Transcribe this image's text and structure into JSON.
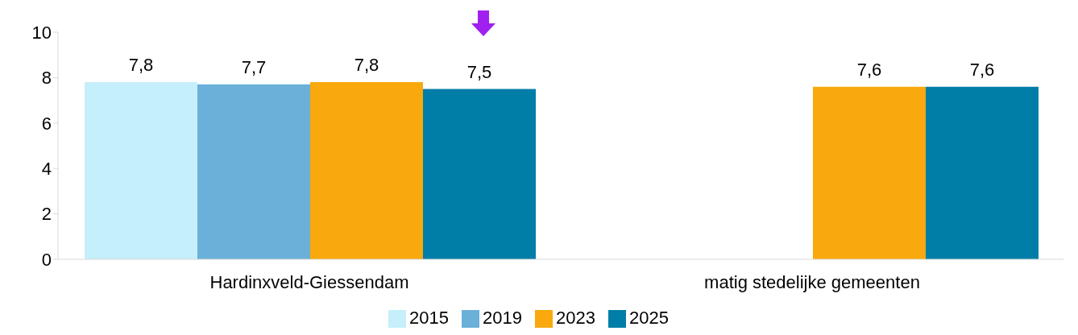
{
  "chart_data": {
    "type": "bar",
    "categories": [
      "Hardinxveld-Giessendam",
      "matig stedelijke gemeenten"
    ],
    "series": [
      {
        "name": "2015",
        "color": "#c5effb",
        "values": [
          7.8,
          null
        ],
        "value_labels": [
          "7,8",
          null
        ]
      },
      {
        "name": "2019",
        "color": "#6ab0d9",
        "values": [
          7.7,
          null
        ],
        "value_labels": [
          "7,7",
          null
        ]
      },
      {
        "name": "2023",
        "color": "#f9a80d",
        "values": [
          7.8,
          7.6
        ],
        "value_labels": [
          "7,8",
          "7,6"
        ]
      },
      {
        "name": "2025",
        "color": "#007ea7",
        "values": [
          7.5,
          7.6
        ],
        "value_labels": [
          "7,5",
          "7,6"
        ]
      }
    ],
    "ylim": [
      0,
      10
    ],
    "yticks": [
      0,
      2,
      4,
      6,
      8,
      10
    ],
    "grid": false,
    "legend": "bottom"
  }
}
